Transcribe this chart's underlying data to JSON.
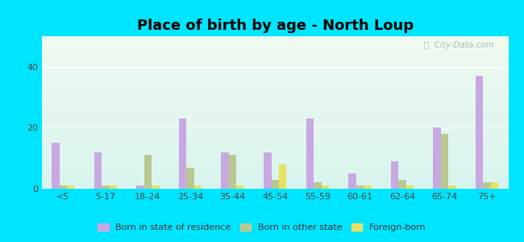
{
  "title": "Place of birth by age - North Loup",
  "categories": [
    "<5",
    "5-17",
    "18-24",
    "25-34",
    "35-44",
    "45-54",
    "55-59",
    "60-61",
    "62-64",
    "65-74",
    "75+"
  ],
  "born_in_state": [
    15,
    12,
    1,
    23,
    12,
    12,
    23,
    5,
    9,
    20,
    37
  ],
  "born_other_state": [
    1,
    1,
    11,
    7,
    11,
    3,
    2,
    1,
    3,
    18,
    2
  ],
  "foreign_born": [
    1,
    1,
    1,
    1,
    1,
    8,
    1,
    1,
    1,
    1,
    2
  ],
  "color_state": "#c8a8e0",
  "color_other": "#b8c890",
  "color_foreign": "#e8e060",
  "outer_bg": "#00e5ff",
  "bg_top": "#f0faf0",
  "bg_bottom": "#d8f4ee",
  "ylim": [
    0,
    50
  ],
  "yticks": [
    0,
    20,
    40
  ],
  "bar_width": 0.18,
  "legend_labels": [
    "Born in state of residence",
    "Born in other state",
    "Foreign-born"
  ],
  "title_fontsize": 13,
  "tick_fontsize": 8
}
